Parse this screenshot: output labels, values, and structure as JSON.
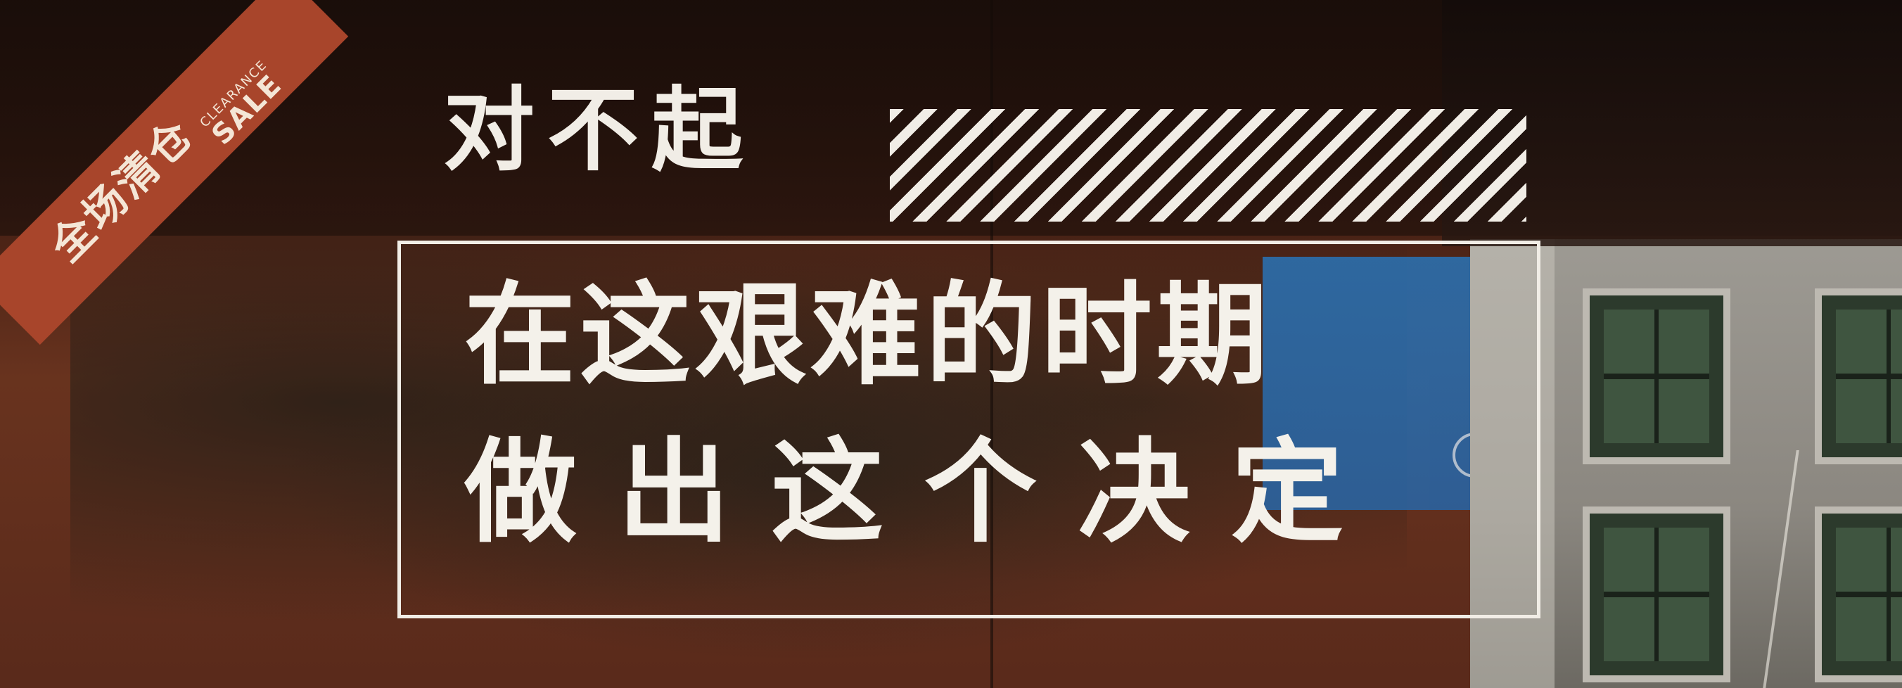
{
  "banner": {
    "chinese": "全场清仓",
    "english_small": "CLEARANCE",
    "english_big": "SALE",
    "color": "#a8452b"
  },
  "headline": {
    "apology": "对不起"
  },
  "message": {
    "line1": "在这艰难的时期",
    "line2": "做出这个决定"
  }
}
